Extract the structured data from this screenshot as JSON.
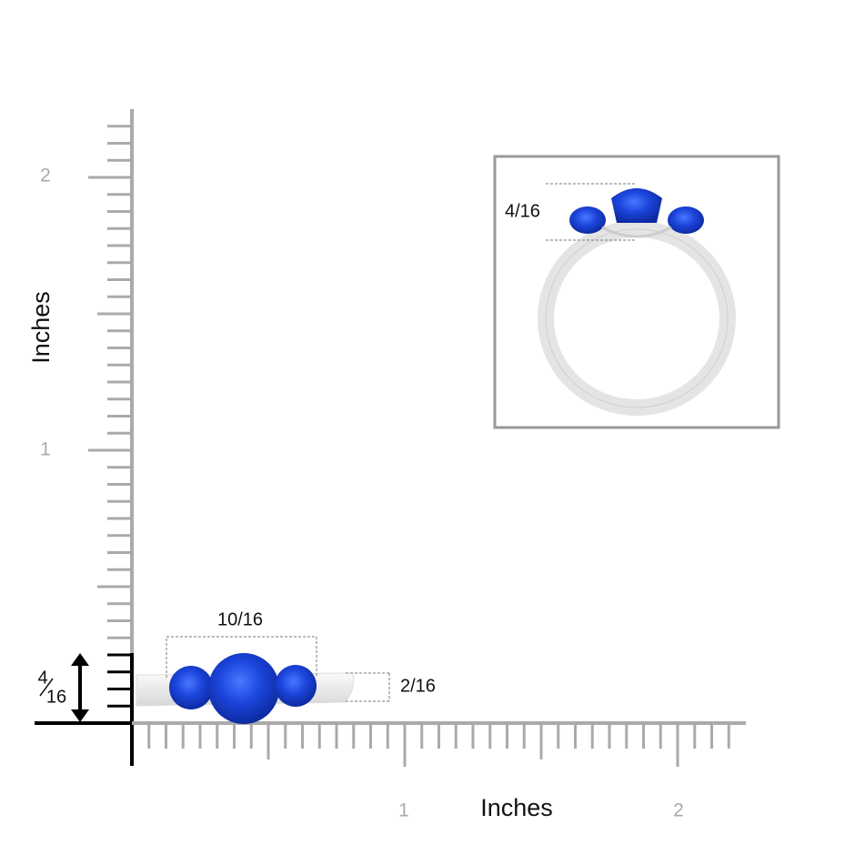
{
  "y_axis": {
    "label": "Inches",
    "ticks": [
      "1",
      "2"
    ]
  },
  "x_axis": {
    "label": "Inches",
    "ticks": [
      "1",
      "2"
    ]
  },
  "dimensions": {
    "width": "10/16",
    "height": "2/16",
    "total_height": {
      "numerator": "4",
      "denominator": "16"
    }
  },
  "inset": {
    "height": "4/16"
  }
}
